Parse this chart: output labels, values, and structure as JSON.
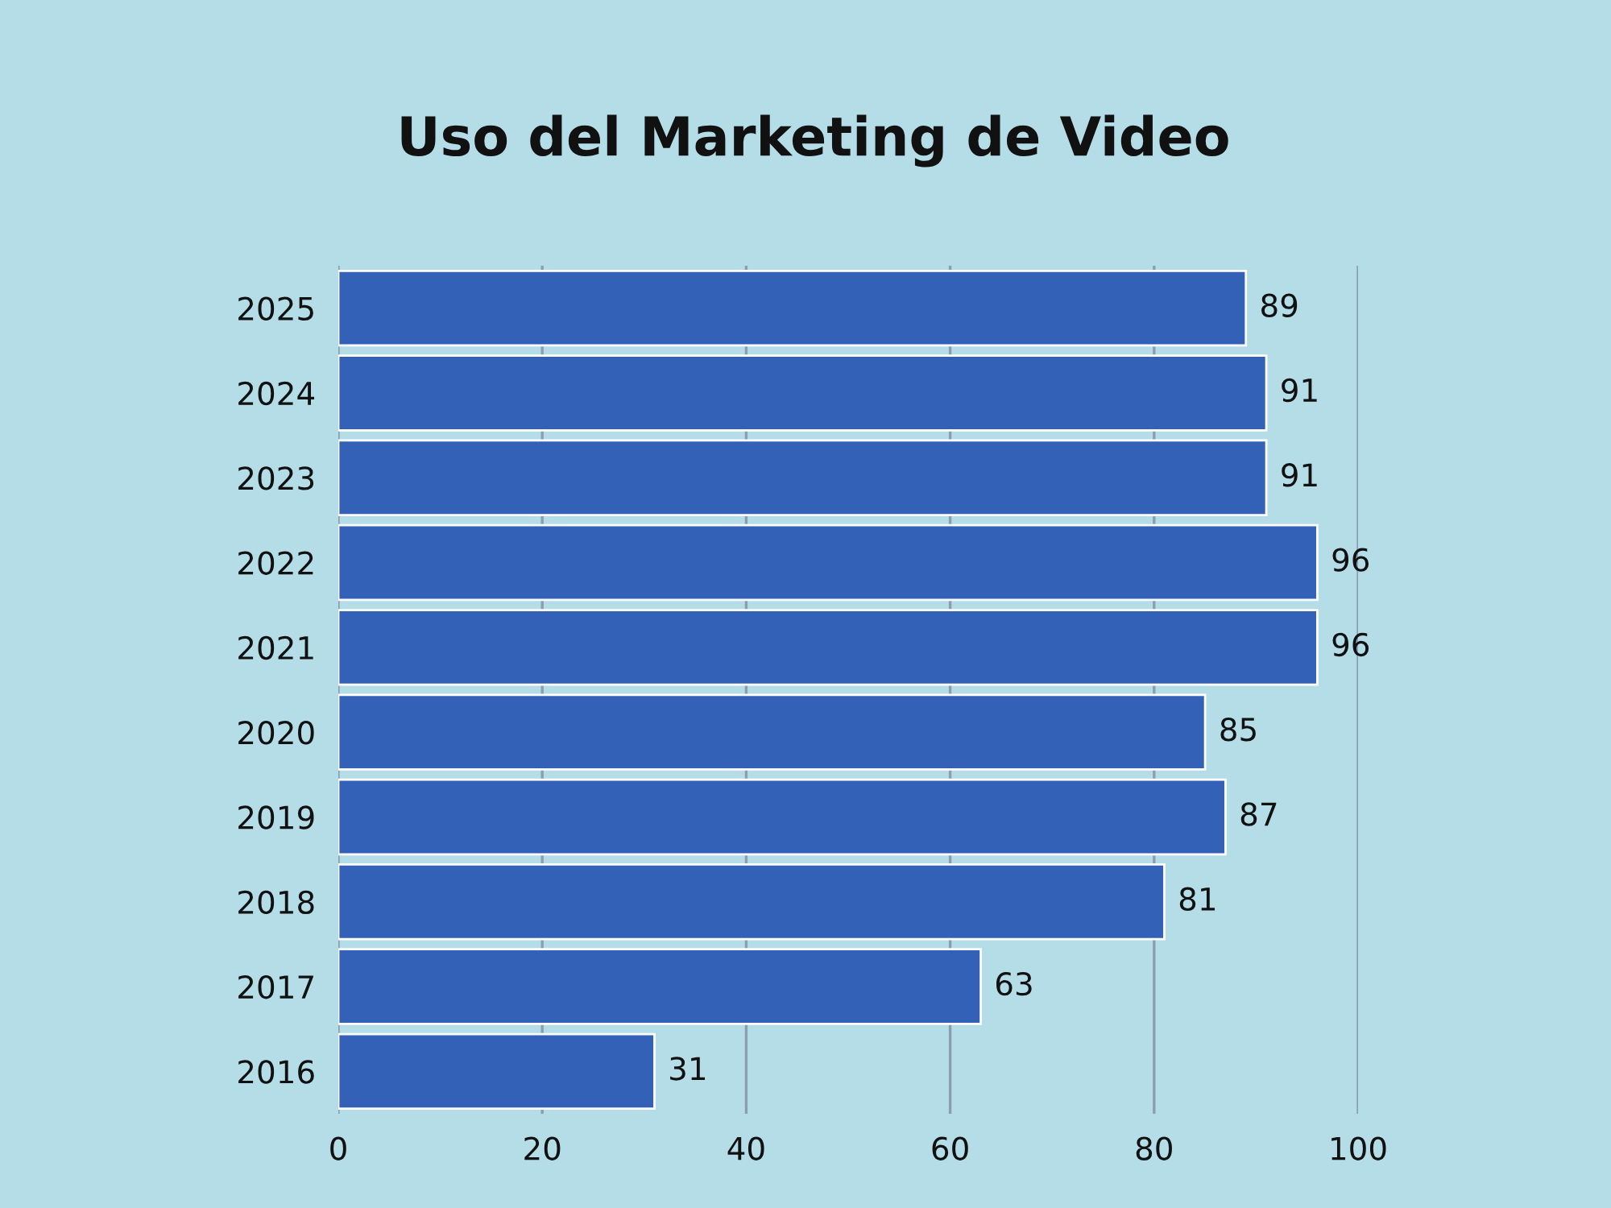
{
  "chart_data": {
    "type": "bar",
    "title": "Uso del Marketing de Video",
    "orientation": "horizontal",
    "categories": [
      "2025",
      "2024",
      "2023",
      "2022",
      "2021",
      "2020",
      "2019",
      "2018",
      "2017",
      "2016"
    ],
    "values": [
      89,
      91,
      91,
      96,
      96,
      85,
      87,
      81,
      63,
      31
    ],
    "color": "#3461b8",
    "xlim": [
      0,
      100
    ],
    "xticks": [
      0,
      20,
      40,
      60,
      80,
      100
    ],
    "grid": "x",
    "data_labels": true
  }
}
